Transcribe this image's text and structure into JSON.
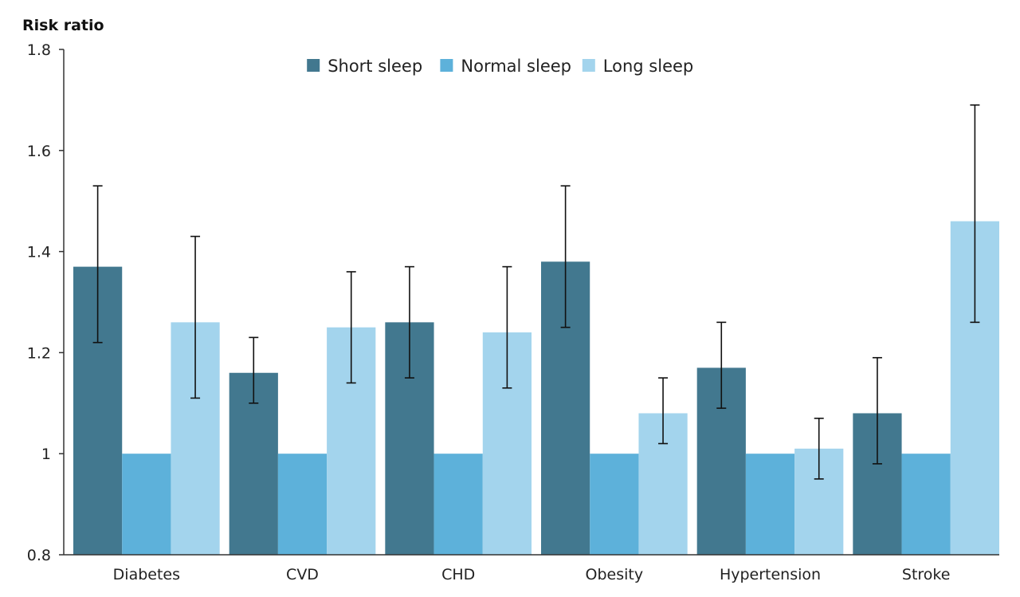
{
  "chart_data": {
    "type": "bar",
    "title": "",
    "xlabel": "",
    "ylabel": "Risk ratio",
    "ylim": [
      0.8,
      1.8
    ],
    "yticks": [
      "0.8",
      "1",
      "1.2",
      "1.4",
      "1.6",
      "1.8"
    ],
    "ytick_values": [
      0.8,
      1.0,
      1.2,
      1.4,
      1.6,
      1.8
    ],
    "grid": false,
    "legend_position": "top-center",
    "categories": [
      "Diabetes",
      "CVD",
      "CHD",
      "Obesity",
      "Hypertension",
      "Stroke"
    ],
    "series": [
      {
        "name": "Short sleep",
        "color": "#42788f",
        "values": [
          1.37,
          1.16,
          1.26,
          1.38,
          1.17,
          1.08
        ],
        "error_low": [
          1.22,
          1.1,
          1.15,
          1.25,
          1.09,
          0.98
        ],
        "error_high": [
          1.53,
          1.23,
          1.37,
          1.53,
          1.26,
          1.19
        ]
      },
      {
        "name": "Normal sleep",
        "color": "#5db1da",
        "values": [
          1.0,
          1.0,
          1.0,
          1.0,
          1.0,
          1.0
        ],
        "error_low": [
          null,
          null,
          null,
          null,
          null,
          null
        ],
        "error_high": [
          null,
          null,
          null,
          null,
          null,
          null
        ]
      },
      {
        "name": "Long sleep",
        "color": "#a3d4ed",
        "values": [
          1.26,
          1.25,
          1.24,
          1.08,
          1.01,
          1.46
        ],
        "error_low": [
          1.11,
          1.14,
          1.13,
          1.02,
          0.95,
          1.26
        ],
        "error_high": [
          1.43,
          1.36,
          1.37,
          1.15,
          1.07,
          1.69
        ]
      }
    ]
  }
}
